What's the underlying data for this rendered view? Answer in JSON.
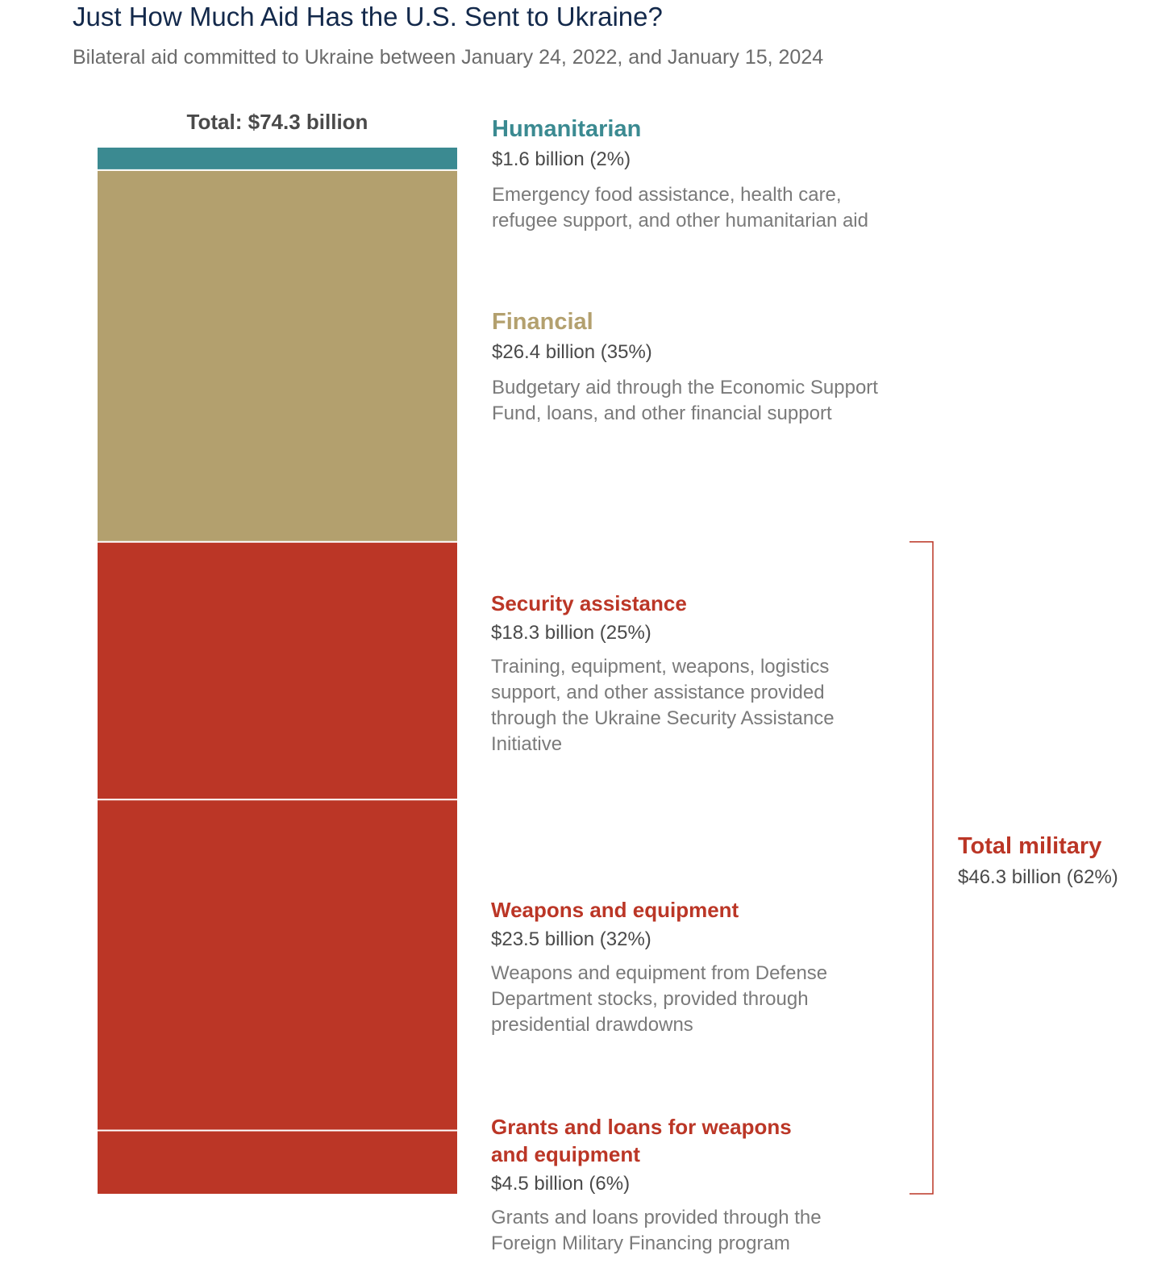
{
  "chart_data": {
    "type": "bar",
    "title": "Just How Much Aid Has the U.S. Sent to Ukraine?",
    "subtitle": "Bilateral aid committed to Ukraine between January 24, 2022, and January 15, 2024",
    "total_label": "Total: $74.3 billion",
    "total": 74.3,
    "unit": "billion USD",
    "segments": [
      {
        "name": "Humanitarian",
        "value": 1.6,
        "value_label": "$1.6 billion (2%)",
        "description": "Emergency food assistance, health care, refugee support, and other humanitarian aid",
        "color": "#3b8a91"
      },
      {
        "name": "Financial",
        "value": 26.4,
        "value_label": "$26.4 billion (35%)",
        "description": "Budgetary aid through the Economic Support Fund, loans, and other financial support",
        "color": "#b3a06e"
      },
      {
        "name": "Security assistance",
        "value": 18.3,
        "value_label": "$18.3 billion (25%)",
        "description": "Training, equipment, weapons, logistics support, and other assistance provided through the Ukraine Security Assistance Initiative",
        "color": "#bb3626"
      },
      {
        "name": "Weapons and equipment",
        "value": 23.5,
        "value_label": "$23.5 billion (32%)",
        "description": "Weapons and equipment from Defense Department stocks, provided through presidential drawdowns",
        "color": "#bb3626"
      },
      {
        "name": "Grants and loans for weapons and equipment",
        "value": 4.5,
        "value_label": "$4.5 billion (6%)",
        "description": "Grants and loans provided through the Foreign Military Financing program",
        "color": "#bb3626"
      }
    ],
    "group": {
      "name": "Total military",
      "value": 46.3,
      "value_label": "$46.3 billion (62%)",
      "color": "#bb3626"
    }
  }
}
